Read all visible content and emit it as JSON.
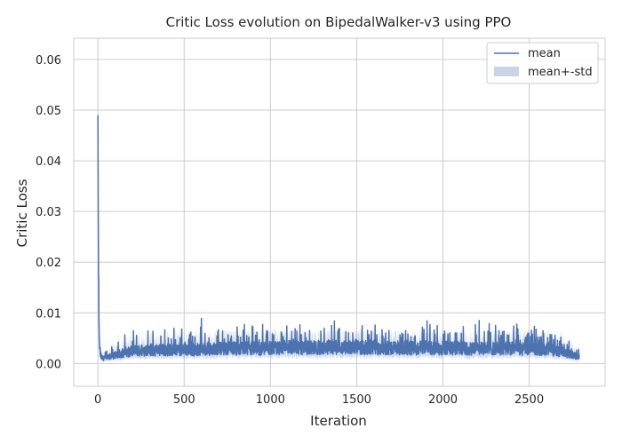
{
  "chart_data": {
    "type": "line",
    "title": "Critic Loss evolution on BipedalWalker-v3 using PPO",
    "xlabel": "Iteration",
    "ylabel": "Critic Loss",
    "xlim": [
      -140,
      2940
    ],
    "ylim": [
      -0.0045,
      0.0642
    ],
    "xticks": [
      0,
      500,
      1000,
      1500,
      2000,
      2500
    ],
    "yticks": [
      0.0,
      0.01,
      0.02,
      0.03,
      0.04,
      0.05,
      0.06
    ],
    "ytick_labels": [
      "0.00",
      "0.01",
      "0.02",
      "0.03",
      "0.04",
      "0.05",
      "0.06"
    ],
    "grid": true,
    "legend_position": "top-right",
    "series": [
      {
        "name": "mean",
        "color": "#4c72b0",
        "x": [
          0,
          2,
          4,
          6,
          8,
          10,
          14,
          20,
          30,
          50,
          80,
          100,
          150,
          200,
          250,
          300,
          350,
          400,
          450,
          500,
          550,
          600,
          650,
          700,
          750,
          800,
          850,
          900,
          950,
          1000,
          1050,
          1100,
          1150,
          1200,
          1250,
          1300,
          1350,
          1400,
          1450,
          1500,
          1550,
          1600,
          1650,
          1700,
          1750,
          1800,
          1850,
          1900,
          1950,
          2000,
          2050,
          2100,
          2150,
          2200,
          2250,
          2300,
          2350,
          2400,
          2450,
          2500,
          2550,
          2600,
          2650,
          2700,
          2750,
          2790
        ],
        "values": [
          0.049,
          0.03,
          0.017,
          0.009,
          0.005,
          0.003,
          0.002,
          0.0012,
          0.001,
          0.0011,
          0.0014,
          0.0017,
          0.0021,
          0.0024,
          0.0026,
          0.0027,
          0.0026,
          0.0027,
          0.0028,
          0.0027,
          0.0026,
          0.0029,
          0.0028,
          0.0029,
          0.003,
          0.0029,
          0.0031,
          0.003,
          0.0029,
          0.0031,
          0.003,
          0.0032,
          0.0031,
          0.003,
          0.0032,
          0.0031,
          0.0033,
          0.0032,
          0.0031,
          0.0032,
          0.0031,
          0.0032,
          0.003,
          0.0031,
          0.003,
          0.0031,
          0.003,
          0.0032,
          0.003,
          0.0031,
          0.003,
          0.0031,
          0.0029,
          0.003,
          0.0031,
          0.003,
          0.0029,
          0.003,
          0.0028,
          0.0029,
          0.0028,
          0.0029,
          0.0026,
          0.0022,
          0.0017,
          0.0014
        ],
        "peaks": [
          [
            5,
            0.017
          ],
          [
            600,
            0.0089
          ],
          [
            955,
            0.0077
          ],
          [
            1095,
            0.0074
          ],
          [
            1355,
            0.0075
          ],
          [
            1925,
            0.0077
          ],
          [
            2210,
            0.0085
          ],
          [
            2305,
            0.0075
          ],
          [
            2410,
            0.0074
          ],
          [
            2530,
            0.0073
          ]
        ]
      },
      {
        "name": "mean+-std",
        "color": "#4c72b0",
        "kind": "band",
        "upper_envelope": 0.0065,
        "lower_envelope": 0.0
      }
    ]
  }
}
